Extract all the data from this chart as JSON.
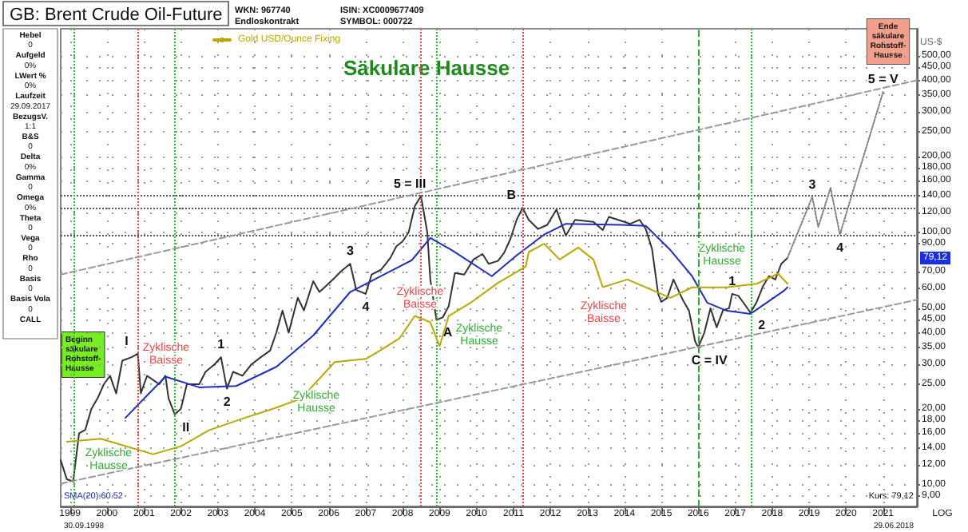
{
  "chart_data": {
    "type": "line",
    "title": "GB: Brent Crude Oil-Future",
    "subtitle": "Säkulare Hausse",
    "ylabel": "US-$",
    "log": "y",
    "grid": true,
    "marker": "none",
    "legend": "top left",
    "xlim": [
      "1998-10",
      "2021-12"
    ],
    "xticks": [
      "1999",
      "2000",
      "2001",
      "2002",
      "2003",
      "2004",
      "2005",
      "2006",
      "2007",
      "2008",
      "2009",
      "2010",
      "2011",
      "2012",
      "2013",
      "2014",
      "2015",
      "2016",
      "2017",
      "2018",
      "2019",
      "2020",
      "2021"
    ],
    "ylim": [
      8.2,
      640
    ],
    "yticks": [
      {
        "value": 9,
        "label": "9,00"
      },
      {
        "value": 10,
        "label": "10,00"
      },
      {
        "value": 12,
        "label": "12,00"
      },
      {
        "value": 14,
        "label": "14,00"
      },
      {
        "value": 16,
        "label": "16,00"
      },
      {
        "value": 18,
        "label": "18,00"
      },
      {
        "value": 20,
        "label": "20,00"
      },
      {
        "value": 25,
        "label": "25,00"
      },
      {
        "value": 30,
        "label": "30,00"
      },
      {
        "value": 35,
        "label": "35,00"
      },
      {
        "value": 40,
        "label": "40,00"
      },
      {
        "value": 45,
        "label": "45,00"
      },
      {
        "value": 50,
        "label": "50,00"
      },
      {
        "value": 60,
        "label": "60,00"
      },
      {
        "value": 70,
        "label": "70,00"
      },
      {
        "value": 90,
        "label": "90,00"
      },
      {
        "value": 100,
        "label": "100,00"
      },
      {
        "value": 120,
        "label": "120,00"
      },
      {
        "value": 140,
        "label": "140,00"
      },
      {
        "value": 160,
        "label": "160,00"
      },
      {
        "value": 180,
        "label": "180,00"
      },
      {
        "value": 200,
        "label": "200,00"
      },
      {
        "value": 250,
        "label": "250,00"
      },
      {
        "value": 300,
        "label": "300,00"
      },
      {
        "value": 350,
        "label": "350,00"
      },
      {
        "value": 400,
        "label": "400,00"
      },
      {
        "value": 450,
        "label": "450,00"
      },
      {
        "value": 500,
        "label": "500,00"
      }
    ],
    "series": [
      {
        "type": "line",
        "color": "#333333",
        "x": [
          "1998-10",
          "1998-12",
          "1999-02",
          "1999-04",
          "1999-06",
          "1999-08",
          "1999-10",
          "1999-12",
          "2000-02",
          "2000-04",
          "2000-06",
          "2000-09",
          "2000-11",
          "2000-12",
          "2001-02",
          "2001-04",
          "2001-06",
          "2001-08",
          "2001-09",
          "2001-11",
          "2002-01",
          "2002-03",
          "2002-05",
          "2002-07",
          "2002-09",
          "2002-12",
          "2003-02",
          "2003-04",
          "2003-06",
          "2003-09",
          "2003-12",
          "2004-03",
          "2004-06",
          "2004-08",
          "2004-10",
          "2004-12",
          "2005-03",
          "2005-05",
          "2005-08",
          "2005-10",
          "2005-12",
          "2006-03",
          "2006-05",
          "2006-08",
          "2006-10",
          "2007-01",
          "2007-03",
          "2007-06",
          "2007-09",
          "2007-11",
          "2008-01",
          "2008-03",
          "2008-05",
          "2008-07",
          "2008-09",
          "2008-10",
          "2008-12",
          "2009-02",
          "2009-04",
          "2009-06",
          "2009-09",
          "2009-12",
          "2010-03",
          "2010-05",
          "2010-08",
          "2010-10",
          "2010-12",
          "2011-02",
          "2011-04",
          "2011-06",
          "2011-09",
          "2011-12",
          "2012-03",
          "2012-06",
          "2012-09",
          "2012-12",
          "2013-03",
          "2013-06",
          "2013-08",
          "2013-12",
          "2014-03",
          "2014-06",
          "2014-08",
          "2014-10",
          "2014-12",
          "2015-01",
          "2015-03",
          "2015-05",
          "2015-08",
          "2015-10",
          "2015-12",
          "2016-01",
          "2016-03",
          "2016-05",
          "2016-07",
          "2016-09",
          "2016-11",
          "2016-12",
          "2017-02",
          "2017-04",
          "2017-06",
          "2017-08",
          "2017-10",
          "2017-12",
          "2018-02",
          "2018-04",
          "2018-06"
        ],
        "values": [
          12.5,
          10.5,
          10.3,
          16,
          16.5,
          20,
          22,
          25,
          27,
          23,
          31,
          32,
          33,
          23,
          27,
          26,
          25,
          27,
          22,
          19,
          20,
          25,
          25,
          25,
          28,
          30,
          32,
          24,
          28,
          27,
          30,
          32,
          34,
          40,
          49,
          40,
          55,
          49,
          64,
          58,
          61,
          66,
          70,
          75,
          59,
          57,
          68,
          71,
          79,
          88,
          92,
          100,
          127,
          139,
          100,
          65,
          45,
          46,
          51,
          69,
          68,
          78,
          82,
          75,
          77,
          83,
          94,
          112,
          125,
          112,
          103,
          107,
          123,
          97,
          112,
          111,
          110,
          102,
          115,
          111,
          108,
          112,
          103,
          86,
          57,
          53,
          55,
          65,
          54,
          49,
          37,
          35,
          40,
          50,
          42,
          49,
          50,
          57,
          56,
          52,
          48,
          53,
          61,
          67,
          65,
          75,
          79.12
        ]
      },
      {
        "type": "line",
        "color": "#1f2fb8",
        "x": [
          "2000-07",
          "2001-08",
          "2002-07",
          "2003-07",
          "2004-08",
          "2005-08",
          "2006-08",
          "2007-06",
          "2008-04",
          "2008-10",
          "2009-05",
          "2010-06",
          "2011-02",
          "2011-11",
          "2012-06",
          "2013-12",
          "2014-08",
          "2015-04",
          "2015-11",
          "2016-04",
          "2016-10",
          "2017-06",
          "2018-05",
          "2018-06"
        ],
        "values": [
          18.4,
          26.8,
          24.3,
          24.6,
          29.3,
          39,
          58,
          67,
          77.5,
          95,
          85,
          67,
          81,
          98,
          108,
          107,
          106,
          85,
          67,
          52.5,
          49,
          47.5,
          58.8,
          60.52
        ]
      },
      {
        "type": "line",
        "name": "Gold USD/Ounce Fixing",
        "color": "#b8a800",
        "x": [
          "1998-12",
          "1999-11",
          "2001-04",
          "2002-01",
          "2002-10",
          "2003-08",
          "2004-06",
          "2005-04",
          "2006-03",
          "2007-01",
          "2007-04",
          "2007-12",
          "2008-05",
          "2008-10",
          "2009-01",
          "2009-04",
          "2009-11",
          "2010-08",
          "2011-05",
          "2011-06",
          "2011-11",
          "2012-04",
          "2012-10",
          "2013-03",
          "2013-06",
          "2014-02",
          "2015-04",
          "2015-11",
          "2016-10",
          "2017-08",
          "2018-03",
          "2018-06"
        ],
        "values": [
          14.8,
          15.2,
          13.2,
          14.2,
          16.4,
          18.1,
          19.8,
          21.9,
          30.6,
          31.5,
          33,
          38,
          46.6,
          44,
          35.4,
          46.6,
          52.5,
          63,
          73,
          83.5,
          90,
          78,
          87,
          78,
          60.6,
          65,
          55,
          60.5,
          60.5,
          62.5,
          68.6,
          62.5
        ]
      },
      {
        "type": "line",
        "color": "#808080",
        "line_style": "dotted",
        "x": [
          "2018-06",
          "2019-02",
          "2019-04",
          "2019-08",
          "2019-11",
          "2021-01"
        ],
        "values": [
          79.12,
          138,
          105,
          150,
          98,
          360
        ]
      },
      {
        "type": "line",
        "color": "#999999",
        "line_style": "dashed",
        "x": [
          "1998-10",
          "2021-12"
        ],
        "values": [
          68,
          400
        ]
      },
      {
        "type": "line",
        "color": "#999999",
        "line_style": "dashed",
        "x": [
          "1998-10",
          "2021-12"
        ],
        "values": [
          10.1,
          54
        ]
      }
    ],
    "ref_lines": [
      {
        "axis": "y",
        "value": 140,
        "color": "#555555",
        "line_style": "dotted"
      },
      {
        "axis": "y",
        "value": 124,
        "color": "#555555",
        "line_style": "dotted"
      },
      {
        "axis": "y",
        "value": 97,
        "color": "#555555",
        "line_style": "dotted"
      },
      {
        "axis": "x",
        "value": "1999-02",
        "color": "#33bb33",
        "line_style": "dotted"
      },
      {
        "axis": "x",
        "value": "2000-11",
        "color": "#ee4444",
        "line_style": "dotted"
      },
      {
        "axis": "x",
        "value": "2001-11",
        "color": "#33bb33",
        "line_style": "dotted"
      },
      {
        "axis": "x",
        "value": "2008-07",
        "color": "#ee4444",
        "line_style": "dotted"
      },
      {
        "axis": "x",
        "value": "2008-12",
        "color": "#33bb33",
        "line_style": "dotted"
      },
      {
        "axis": "x",
        "value": "2011-04",
        "color": "#ee4444",
        "line_style": "dotted"
      },
      {
        "axis": "x",
        "value": "2016-01",
        "color": "#33aa33",
        "line_style": "dashed"
      },
      {
        "axis": "x",
        "value": "2017-06",
        "color": "#33bb33",
        "line_style": "dotted"
      }
    ],
    "annotations": [
      "WKN: 967740",
      "Endloskontrakt",
      "ISIN: XC0009677409",
      "SYMBOL: 000722",
      "Hebel",
      "0",
      "Aufgeld",
      "0%",
      "LWert %",
      "0%",
      "Laufzeit",
      "29.09.2017",
      "BezugsV.",
      "1:1",
      "B&S",
      "0",
      "Delta",
      "0%",
      "Gamma",
      "0",
      "Omega",
      "0%",
      "Theta",
      "0",
      "Vega",
      "0",
      "Rho",
      "0",
      "Basis",
      "0",
      "Basis Vola",
      "0",
      "CALL",
      "SMA(20):60.52",
      "Kurs: 79,12",
      "30.09.1998",
      "29.06.2018",
      "LOG",
      "79,12",
      "Beginn\nsäkulare\nRohstoff-\nHausse",
      "Ende\nsäkulare\nRohstoff-\nHausse",
      "Zyklische\nHausse",
      "Zyklische\nBaisse",
      "Zyklische\nHausse",
      "Zyklische\nBaisse",
      "Zyklische\nHausse",
      "Zyklische\nBaisse",
      "Zyklische\nHausse",
      {
        "text": "I",
        "x": "2000-11",
        "y": 33
      },
      {
        "text": "II",
        "x": "2001-11",
        "y": 19
      },
      {
        "text": "1",
        "x": "2003-02",
        "y": 32
      },
      {
        "text": "2",
        "x": "2003-04",
        "y": 24
      },
      {
        "text": "3",
        "x": "2006-08",
        "y": 75
      },
      {
        "text": "4",
        "x": "2007-01",
        "y": 57
      },
      {
        "text": "5 = III",
        "x": "2008-07",
        "y": 139
      },
      {
        "text": "A",
        "x": "2008-12",
        "y": 45
      },
      {
        "text": "B",
        "x": "2011-04",
        "y": 125
      },
      {
        "text": "C = IV",
        "x": "2016-01",
        "y": 35
      },
      {
        "text": "1",
        "x": "2016-12",
        "y": 57
      },
      {
        "text": "2",
        "x": "2017-06",
        "y": 48
      },
      {
        "text": "3",
        "x": "2019-02",
        "y": 138
      },
      {
        "text": "4",
        "x": "2019-11",
        "y": 98
      },
      {
        "text": "5 = V",
        "x": "2021-01",
        "y": 360
      }
    ]
  }
}
